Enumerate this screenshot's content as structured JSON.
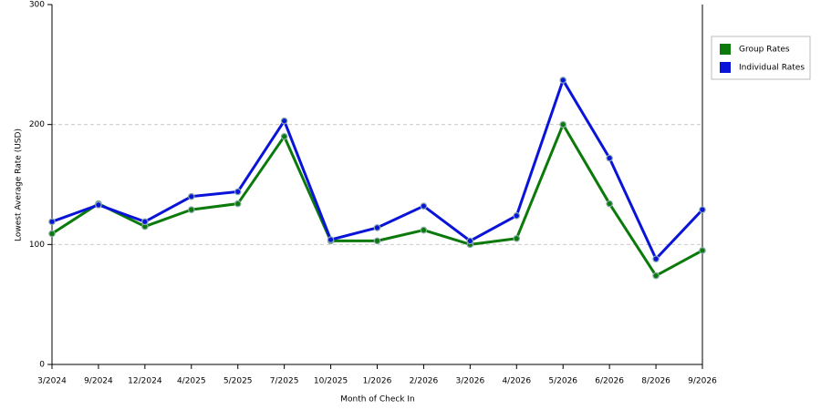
{
  "chart_data": {
    "type": "line",
    "x_label": "Month of Check In",
    "y_label": "Lowest Average Rate (USD)",
    "categories": [
      "3/2024",
      "9/2024",
      "12/2024",
      "4/2025",
      "5/2025",
      "7/2025",
      "10/2025",
      "1/2026",
      "2/2026",
      "3/2026",
      "4/2026",
      "5/2026",
      "6/2026",
      "8/2026",
      "9/2026"
    ],
    "series": [
      {
        "name": "Group Rates",
        "color": "#0b7a0b",
        "values": [
          109,
          134,
          115,
          129,
          134,
          190,
          103,
          103,
          112,
          100,
          105,
          200,
          134,
          74,
          95
        ]
      },
      {
        "name": "Individual Rates",
        "color": "#0a14d8",
        "values": [
          119,
          133,
          119,
          140,
          144,
          203,
          104,
          114,
          132,
          103,
          124,
          237,
          172,
          88,
          129
        ]
      }
    ],
    "ylim": [
      0,
      300
    ],
    "yticks": [
      0,
      100,
      200,
      300
    ],
    "grid": true,
    "legend": "right"
  }
}
